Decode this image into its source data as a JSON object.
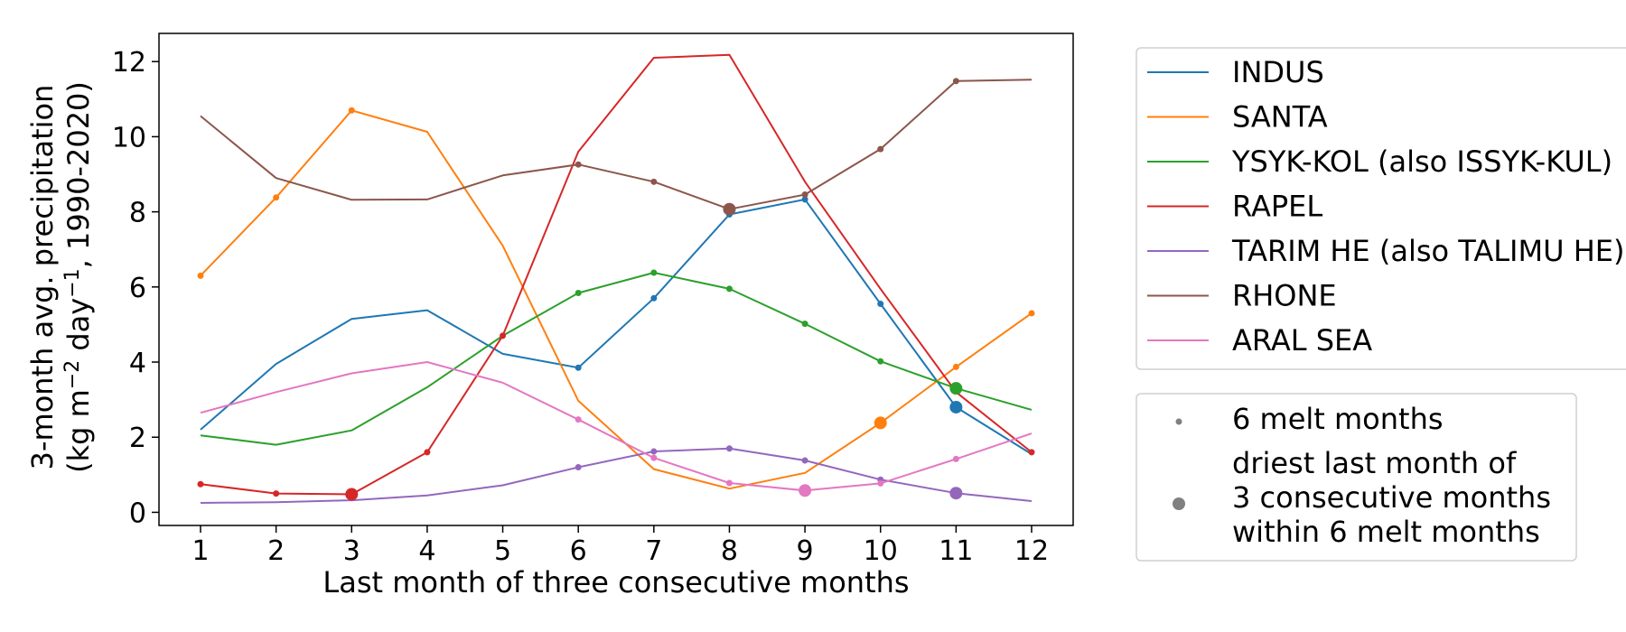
{
  "chart_data": {
    "type": "line",
    "xlabel": "Last month of three consecutive months",
    "ylabel_line1": "3-month avg. precipitation",
    "ylabel_line2_prefix": "(kg m",
    "ylabel_sup1": "−2",
    "ylabel_mid": " day",
    "ylabel_sup2": "−1",
    "ylabel_suffix": ", 1990-2020)",
    "x": [
      1,
      2,
      3,
      4,
      5,
      6,
      7,
      8,
      9,
      10,
      11,
      12
    ],
    "xlim": [
      0.45,
      12.55
    ],
    "ylim": [
      -0.35,
      12.75
    ],
    "yticks": [
      0,
      2,
      4,
      6,
      8,
      10,
      12
    ],
    "grid": false,
    "legend_placement": "outside right",
    "series": [
      {
        "name": "INDUS",
        "color": "#1f77b4",
        "values": [
          2.2,
          3.95,
          5.15,
          5.38,
          4.22,
          3.85,
          5.7,
          7.93,
          8.33,
          5.55,
          2.8,
          1.55
        ],
        "melt_months": [
          6,
          7,
          8,
          9,
          10,
          11
        ],
        "driest_month": 11
      },
      {
        "name": "SANTA",
        "color": "#ff7f0e",
        "values": [
          6.3,
          8.38,
          10.7,
          10.13,
          7.1,
          2.97,
          1.15,
          0.63,
          1.05,
          2.38,
          3.87,
          5.3
        ],
        "melt_months": [
          1,
          2,
          3,
          10,
          11,
          12
        ],
        "driest_month": 10
      },
      {
        "name": "YSYK-KOL (also ISSYK-KUL)",
        "color": "#2ca02c",
        "values": [
          2.05,
          1.8,
          2.18,
          3.33,
          4.7,
          5.84,
          6.38,
          5.95,
          5.02,
          4.02,
          3.3,
          2.73
        ],
        "melt_months": [
          6,
          7,
          8,
          9,
          10,
          11
        ],
        "driest_month": 11
      },
      {
        "name": "RAPEL",
        "color": "#d62728",
        "values": [
          0.75,
          0.5,
          0.48,
          1.6,
          4.7,
          9.6,
          12.1,
          12.18,
          8.8,
          5.95,
          3.2,
          1.6
        ],
        "melt_months": [
          1,
          2,
          3,
          4,
          5,
          12
        ],
        "driest_month": 3
      },
      {
        "name": "TARIM HE (also TALIMU HE)",
        "color": "#9467bd",
        "values": [
          0.25,
          0.27,
          0.32,
          0.45,
          0.72,
          1.2,
          1.62,
          1.7,
          1.38,
          0.87,
          0.51,
          0.3
        ],
        "melt_months": [
          6,
          7,
          8,
          9,
          10,
          11
        ],
        "driest_month": 11
      },
      {
        "name": "RHONE",
        "color": "#8c564b",
        "values": [
          10.55,
          8.9,
          8.32,
          8.33,
          8.97,
          9.26,
          8.8,
          8.07,
          8.46,
          9.67,
          11.48,
          11.52
        ],
        "melt_months": [
          6,
          7,
          8,
          9,
          10,
          11
        ],
        "driest_month": 8
      },
      {
        "name": "ARAL SEA",
        "color": "#e377c2",
        "values": [
          2.65,
          3.2,
          3.7,
          4.0,
          3.45,
          2.47,
          1.45,
          0.78,
          0.58,
          0.77,
          1.42,
          2.1
        ],
        "melt_months": [
          6,
          7,
          8,
          9,
          10,
          11
        ],
        "driest_month": 9
      }
    ],
    "marker_legend": {
      "small_label": "6 melt months",
      "large_line1": "driest last month of",
      "large_line2": "3 consecutive months",
      "large_line3": "within 6 melt months",
      "marker_color": "#808080"
    }
  }
}
